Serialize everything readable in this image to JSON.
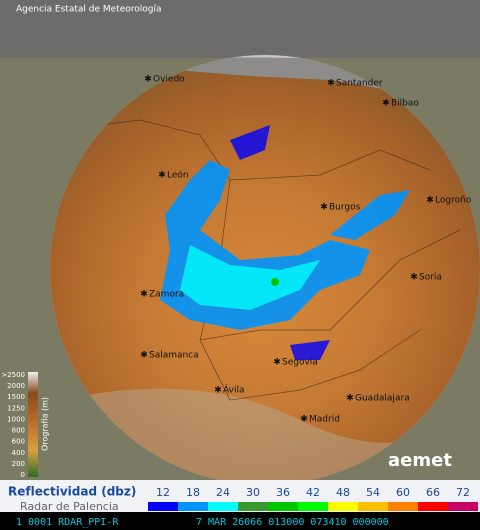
{
  "header": {
    "agency": "Agencia Estatal de Meteorología"
  },
  "cities": [
    {
      "label": "Oviedo"
    },
    {
      "label": "Santander"
    },
    {
      "label": "Bilbao"
    },
    {
      "label": "León"
    },
    {
      "label": "Burgos"
    },
    {
      "label": "Logroño"
    },
    {
      "label": "Soria"
    },
    {
      "label": "Zamora"
    },
    {
      "label": "Salamanca"
    },
    {
      "label": "Segovia"
    },
    {
      "label": "Ávila"
    },
    {
      "label": "Guadalajara"
    },
    {
      "label": "Madrid"
    }
  ],
  "elevation_legend": {
    "title": "Orografía (m)",
    "ticks": [
      ">2500",
      "2000",
      "1500",
      "1250",
      "1000",
      "800",
      "600",
      "400",
      "200",
      "0"
    ]
  },
  "logo": "aemet",
  "reflectivity_legend": {
    "title": "Reflectividad (dbz)",
    "subtitle": "Radar de Palencia",
    "levels": [
      {
        "label": "12",
        "color": "#0000fc"
      },
      {
        "label": "18",
        "color": "#0094fc"
      },
      {
        "label": "24",
        "color": "#00fcfc"
      },
      {
        "label": "30",
        "color": "#3a9a30"
      },
      {
        "label": "36",
        "color": "#00c400"
      },
      {
        "label": "42",
        "color": "#00fc00"
      },
      {
        "label": "48",
        "color": "#fcfc00"
      },
      {
        "label": "54",
        "color": "#fcc000"
      },
      {
        "label": "60",
        "color": "#fc8000"
      },
      {
        "label": "66",
        "color": "#fc0000"
      },
      {
        "label": "72",
        "color": "#c80064"
      }
    ]
  },
  "status_bar": {
    "left": "1 0001 RDAR_PPI-R",
    "right": "7 MAR 26066 013000 073410 000000"
  }
}
